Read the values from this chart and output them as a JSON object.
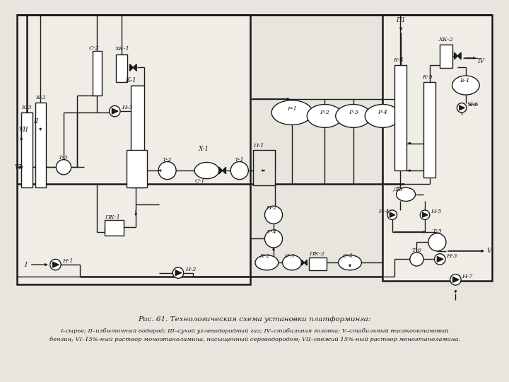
{
  "title": "Рис. 61. Технологическая схема установки платформинга:",
  "caption_line1": "I–сырье; II–избыточный водород; III–сухой углеводородный газ; IV–стабильная головка; V–стабильный высокооктановый",
  "caption_line2": "бензин; VI–15%-ный раствор моноэтаноламина, насыщенный сероводородом; VII–свежий 15%-ный раствор моноэтаноламина.",
  "bg_color": "#e8e5de",
  "diagram_bg": "#f0ede6",
  "line_color": "#1a1a1a",
  "lw": 1.0,
  "lw2": 1.8
}
